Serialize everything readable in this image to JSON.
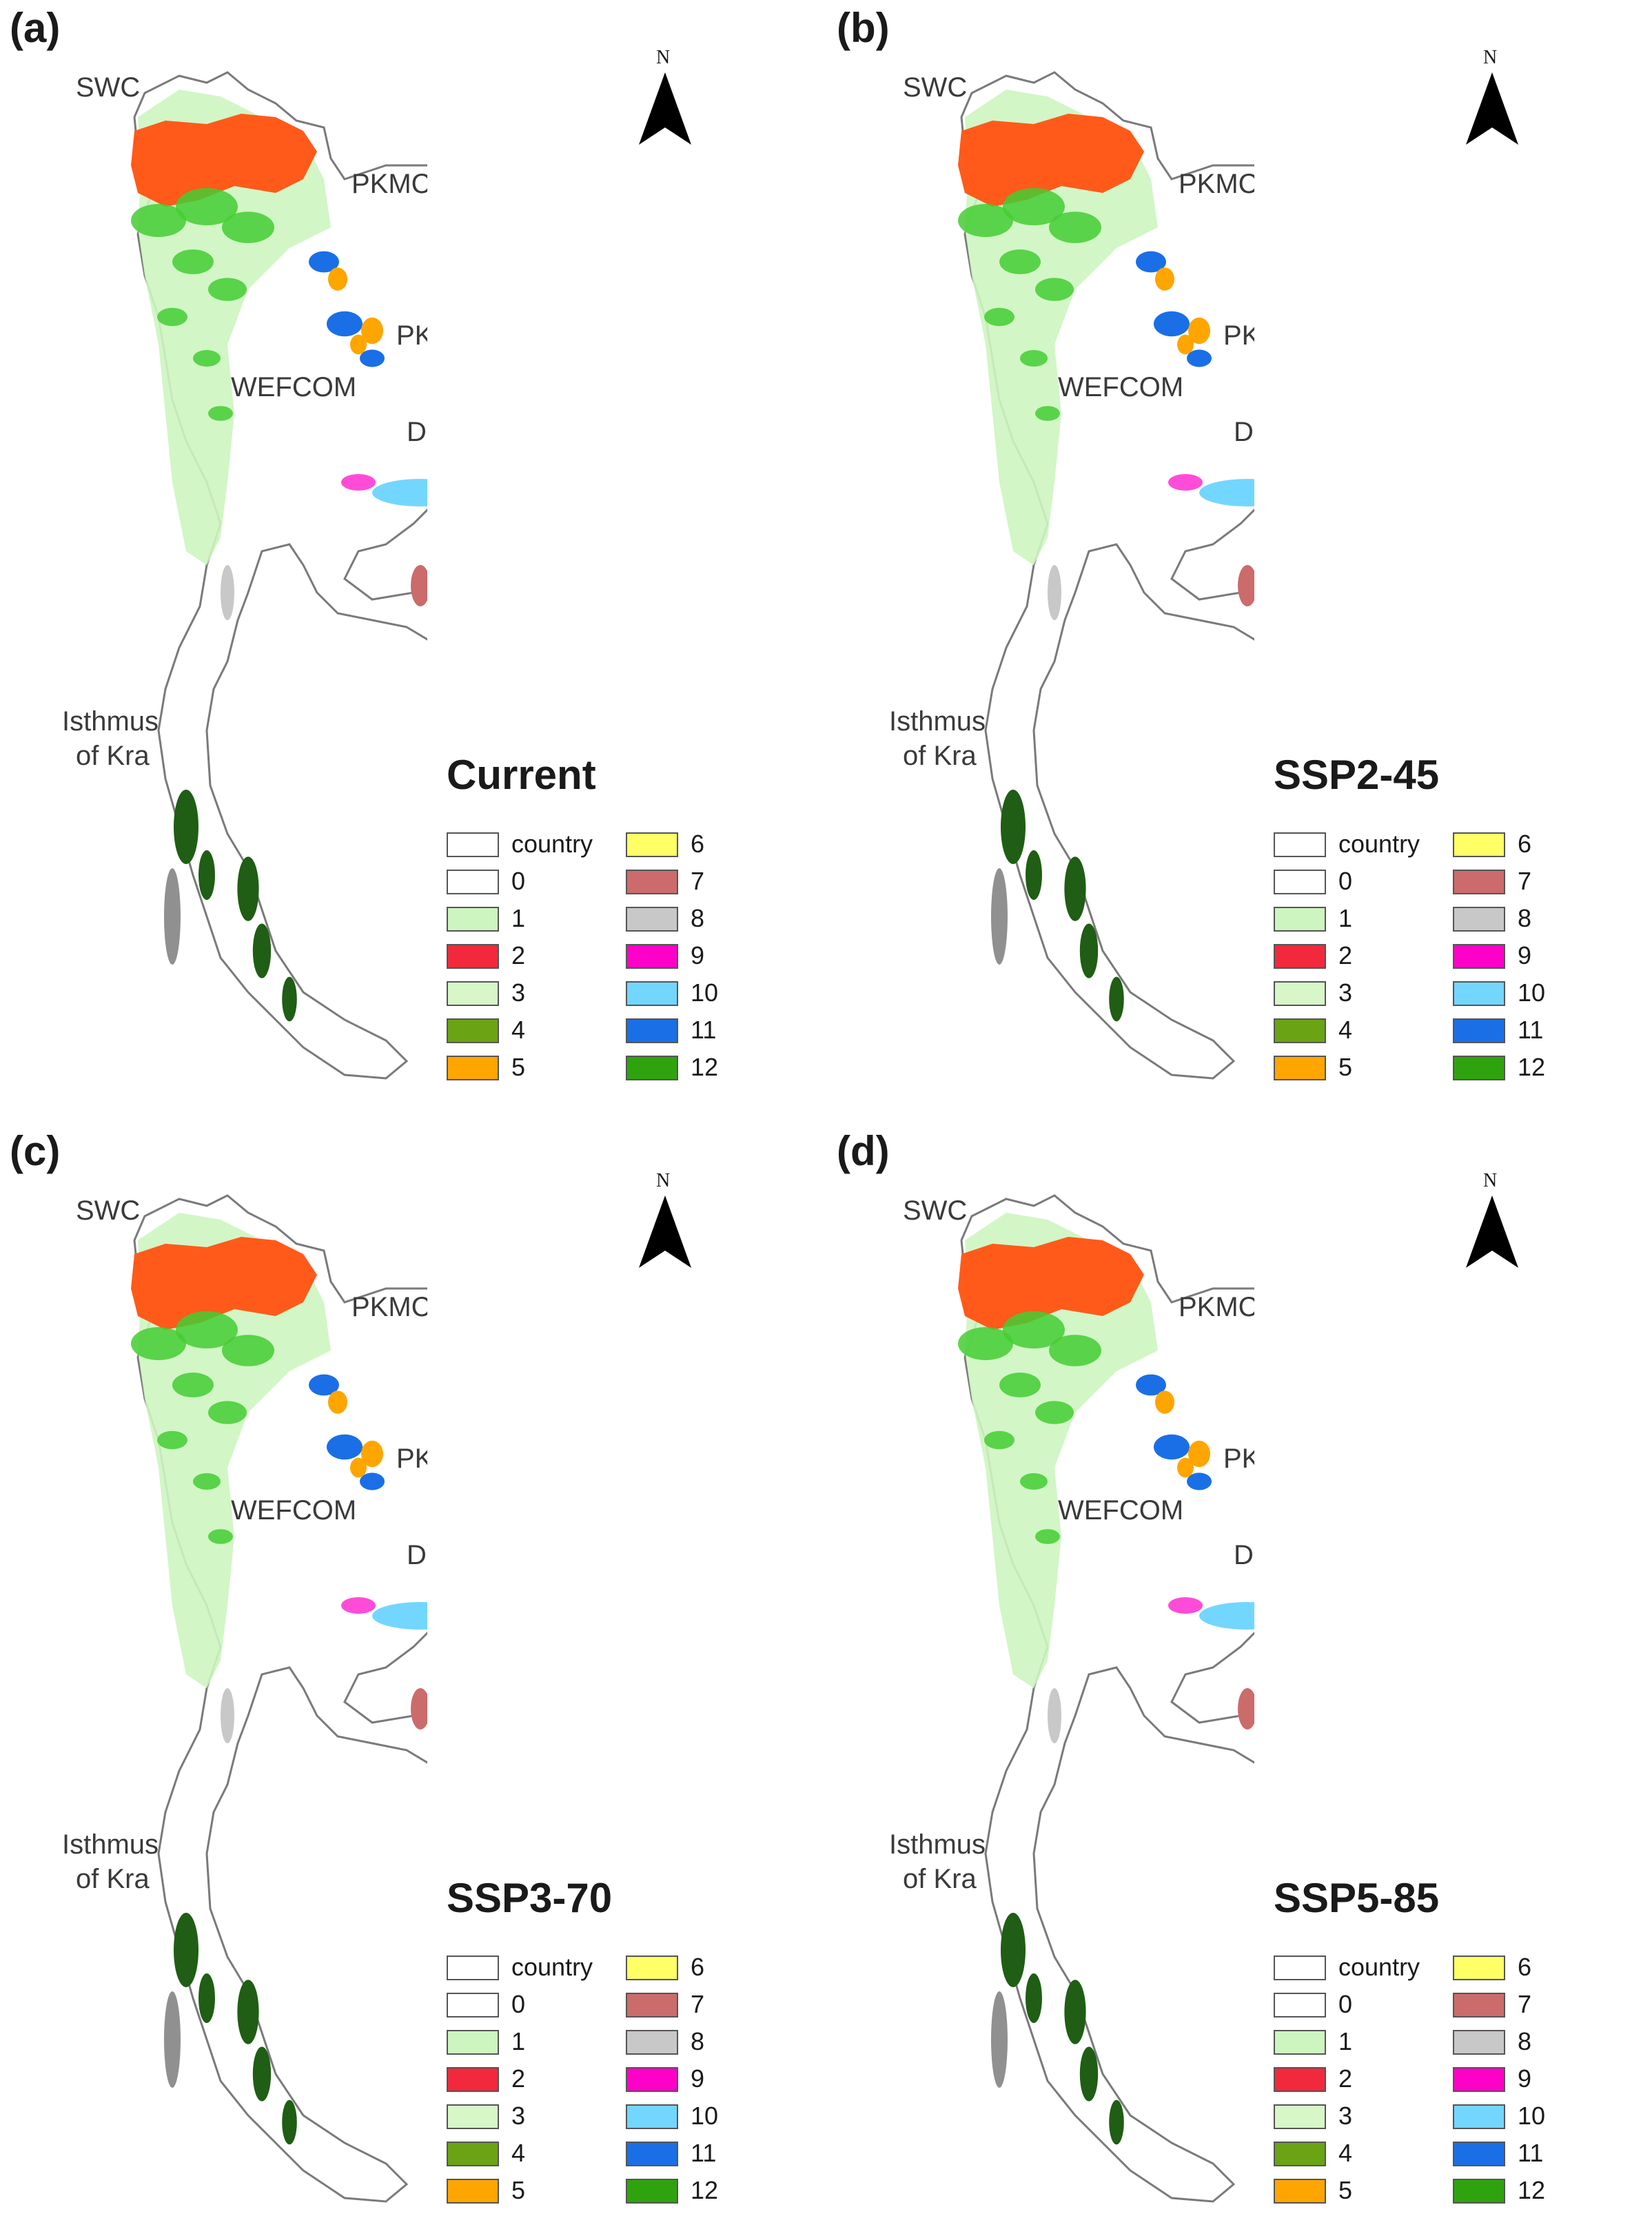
{
  "colors": {
    "country": "#ffffff",
    "0": "#ffffff",
    "1": "#cdf5c0",
    "2": "#f2293d",
    "3": "#d8f7c8",
    "4": "#6aa314",
    "5": "#ffa500",
    "6": "#ffff66",
    "7": "#cc6b6b",
    "8": "#c8c8c8",
    "9": "#ff00c8",
    "10": "#73d6ff",
    "11": "#1a6fe6",
    "12": "#2fa30e",
    "orange_region": "#ff5a1a",
    "dark_green": "#1f5e14",
    "outline": "#7a7a7a"
  },
  "north_label": "N",
  "legend_items_left": [
    {
      "label": "country",
      "color": "#ffffff"
    },
    {
      "label": "0",
      "color": "#ffffff"
    },
    {
      "label": "1",
      "color": "#cdf5c0"
    },
    {
      "label": "2",
      "color": "#f2293d"
    },
    {
      "label": "3",
      "color": "#d8f7c8"
    },
    {
      "label": "4",
      "color": "#6aa314"
    },
    {
      "label": "5",
      "color": "#ffa500"
    }
  ],
  "legend_items_right": [
    {
      "label": "6",
      "color": "#ffff66"
    },
    {
      "label": "7",
      "color": "#cc6b6b"
    },
    {
      "label": "8",
      "color": "#c8c8c8"
    },
    {
      "label": "9",
      "color": "#ff00c8"
    },
    {
      "label": "10",
      "color": "#73d6ff"
    },
    {
      "label": "11",
      "color": "#1a6fe6"
    },
    {
      "label": "12",
      "color": "#2fa30e"
    }
  ],
  "panels": [
    {
      "letter": "(a)",
      "scenario": "Current",
      "labels": {
        "swc": "SWC",
        "pkmc": "PKMC",
        "pknn": "PKNN",
        "wefcom": "WEFCOM",
        "dyky": "DYKY",
        "isthmus_1": "Isthmus",
        "isthmus_2": "of Kra"
      }
    },
    {
      "letter": "(b)",
      "scenario": "SSP2-45",
      "labels": {
        "swc": "SWC",
        "pkmc": "PKMC",
        "pknn": "PKNN",
        "wefcom": "WEFCOM",
        "dyky": "DYKY",
        "isthmus_1": "Isthmus",
        "isthmus_2": "of Kra"
      }
    },
    {
      "letter": "(c)",
      "scenario": "SSP3-70",
      "labels": {
        "swc": "SWC",
        "pkmc": "PKMC",
        "pknn": "PKNN",
        "wefcom": "WEFCOM",
        "dyky": "DYKY",
        "isthmus_1": "Isthmus",
        "isthmus_2": "of Kra"
      }
    },
    {
      "letter": "(d)",
      "scenario": "SSP5-85",
      "labels": {
        "swc": "SWC",
        "pkmc": "PKMC",
        "pknn": "PKNN",
        "wefcom": "WEFCOM",
        "dyky": "DYKY",
        "isthmus_1": "Isthmus",
        "isthmus_2": "of Kra"
      }
    }
  ]
}
